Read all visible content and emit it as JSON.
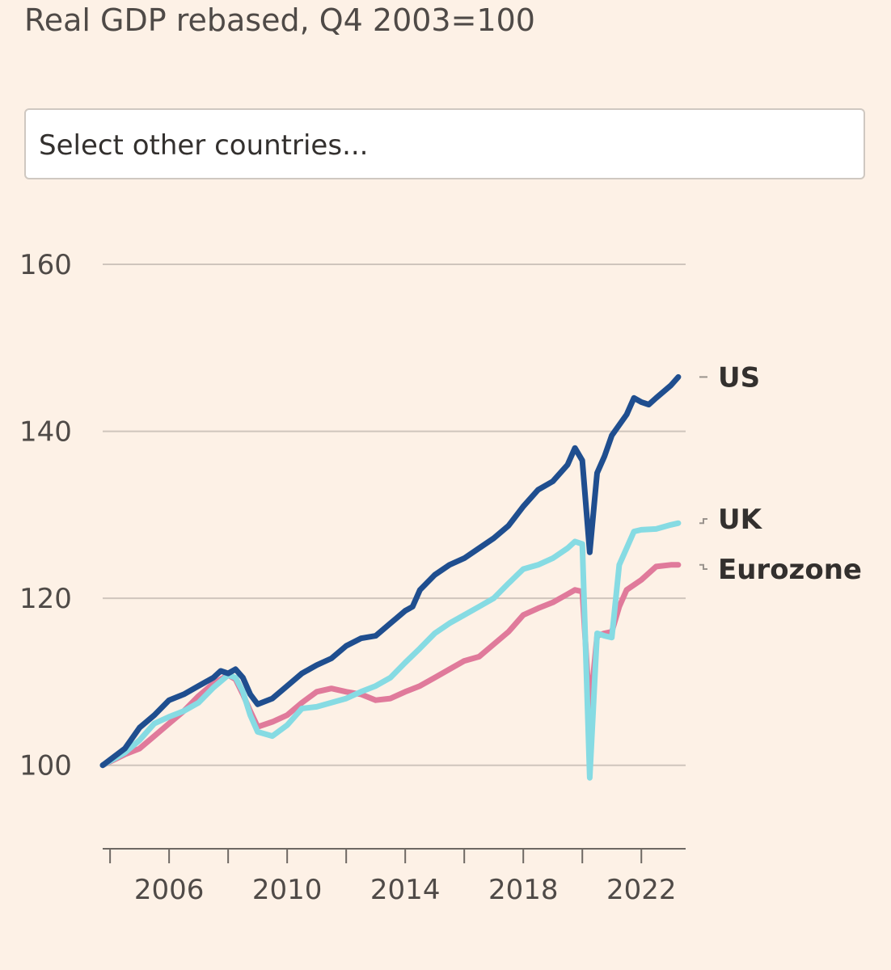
{
  "subtitle": "Real GDP rebased, Q4 2003=100",
  "country_select": {
    "placeholder": "Select other countries..."
  },
  "colors": {
    "background": "#fdf1e6",
    "gridline": "#cfc5bc",
    "us": "#1f4e8f",
    "uk": "#86dbe3",
    "eurozone": "#e07a9b"
  },
  "chart_data": {
    "type": "line",
    "title": "Real GDP rebased, Q4 2003=100",
    "xlabel": "",
    "ylabel": "",
    "xlim": [
      2003.75,
      2023.5
    ],
    "ylim": [
      90,
      160
    ],
    "y_ticks": [
      100,
      120,
      140,
      160
    ],
    "x_tick_labels": [
      "2006",
      "2010",
      "2014",
      "2018",
      "2022"
    ],
    "x_tick_label_values": [
      2006,
      2010,
      2014,
      2018,
      2022
    ],
    "x_tick_marks": [
      2004,
      2006,
      2008,
      2010,
      2012,
      2014,
      2016,
      2018,
      2020,
      2022
    ],
    "grid": true,
    "series": [
      {
        "name": "US",
        "key": "us",
        "x": [
          2003.75,
          2004.5,
          2005.0,
          2005.5,
          2006.0,
          2006.5,
          2007.0,
          2007.5,
          2007.75,
          2008.0,
          2008.25,
          2008.5,
          2008.75,
          2009.0,
          2009.5,
          2010.0,
          2010.5,
          2011.0,
          2011.5,
          2012.0,
          2012.5,
          2013.0,
          2013.5,
          2014.0,
          2014.25,
          2014.5,
          2015.0,
          2015.5,
          2016.0,
          2016.5,
          2017.0,
          2017.5,
          2018.0,
          2018.5,
          2019.0,
          2019.5,
          2019.75,
          2020.0,
          2020.25,
          2020.5,
          2020.75,
          2021.0,
          2021.5,
          2021.75,
          2022.0,
          2022.25,
          2022.5,
          2023.0,
          2023.25
        ],
        "values": [
          100.0,
          102.0,
          104.5,
          106.0,
          107.8,
          108.5,
          109.5,
          110.5,
          111.3,
          111.0,
          111.5,
          110.5,
          108.5,
          107.3,
          108.0,
          109.5,
          111.0,
          112.0,
          112.8,
          114.3,
          115.2,
          115.5,
          117.0,
          118.5,
          119.0,
          121.0,
          122.8,
          124.0,
          124.8,
          126.0,
          127.2,
          128.7,
          131.0,
          133.0,
          134.0,
          136.0,
          138.0,
          136.5,
          125.5,
          135.0,
          137.0,
          139.5,
          142.0,
          144.0,
          143.5,
          143.2,
          144.0,
          145.5,
          146.5
        ]
      },
      {
        "name": "UK",
        "key": "uk",
        "x": [
          2003.75,
          2004.5,
          2005.0,
          2005.5,
          2006.0,
          2006.5,
          2007.0,
          2007.5,
          2008.0,
          2008.25,
          2008.5,
          2008.75,
          2009.0,
          2009.5,
          2010.0,
          2010.5,
          2011.0,
          2011.5,
          2012.0,
          2012.5,
          2013.0,
          2013.5,
          2014.0,
          2014.5,
          2015.0,
          2015.5,
          2016.0,
          2016.5,
          2017.0,
          2017.5,
          2018.0,
          2018.5,
          2019.0,
          2019.5,
          2019.75,
          2020.0,
          2020.25,
          2020.5,
          2020.75,
          2021.0,
          2021.25,
          2021.5,
          2021.75,
          2022.0,
          2022.5,
          2023.0,
          2023.25
        ],
        "values": [
          100.0,
          101.5,
          103.0,
          105.0,
          105.8,
          106.5,
          107.5,
          109.3,
          110.8,
          110.5,
          108.8,
          106.0,
          104.0,
          103.5,
          104.8,
          106.8,
          107.0,
          107.5,
          108.0,
          108.8,
          109.5,
          110.5,
          112.3,
          114.0,
          115.8,
          117.0,
          118.0,
          119.0,
          120.0,
          121.8,
          123.5,
          124.0,
          124.8,
          126.0,
          126.8,
          126.5,
          98.5,
          115.8,
          115.5,
          115.3,
          124.0,
          126.0,
          128.0,
          128.2,
          128.3,
          128.8,
          129.0
        ]
      },
      {
        "name": "Eurozone",
        "key": "eurozone",
        "x": [
          2003.75,
          2004.5,
          2005.0,
          2005.5,
          2006.0,
          2006.5,
          2007.0,
          2007.5,
          2008.0,
          2008.25,
          2008.5,
          2008.75,
          2009.0,
          2009.5,
          2010.0,
          2010.5,
          2011.0,
          2011.5,
          2012.0,
          2012.5,
          2013.0,
          2013.5,
          2014.0,
          2014.5,
          2015.0,
          2015.5,
          2016.0,
          2016.5,
          2017.0,
          2017.5,
          2018.0,
          2018.5,
          2019.0,
          2019.5,
          2019.75,
          2020.0,
          2020.25,
          2020.5,
          2020.75,
          2021.0,
          2021.25,
          2021.5,
          2022.0,
          2022.5,
          2023.0,
          2023.25
        ],
        "values": [
          100.0,
          101.3,
          102.0,
          103.5,
          105.0,
          106.5,
          108.3,
          109.8,
          110.8,
          110.3,
          108.5,
          106.5,
          104.6,
          105.2,
          106.0,
          107.5,
          108.8,
          109.2,
          108.8,
          108.5,
          107.8,
          108.0,
          108.8,
          109.5,
          110.5,
          111.5,
          112.5,
          113.0,
          114.5,
          116.0,
          118.0,
          118.8,
          119.5,
          120.5,
          121.0,
          120.8,
          106.5,
          115.5,
          115.8,
          116.0,
          119.0,
          121.0,
          122.2,
          123.8,
          124.0,
          124.0
        ]
      }
    ],
    "end_labels": [
      "US",
      "UK",
      "Eurozone"
    ]
  }
}
